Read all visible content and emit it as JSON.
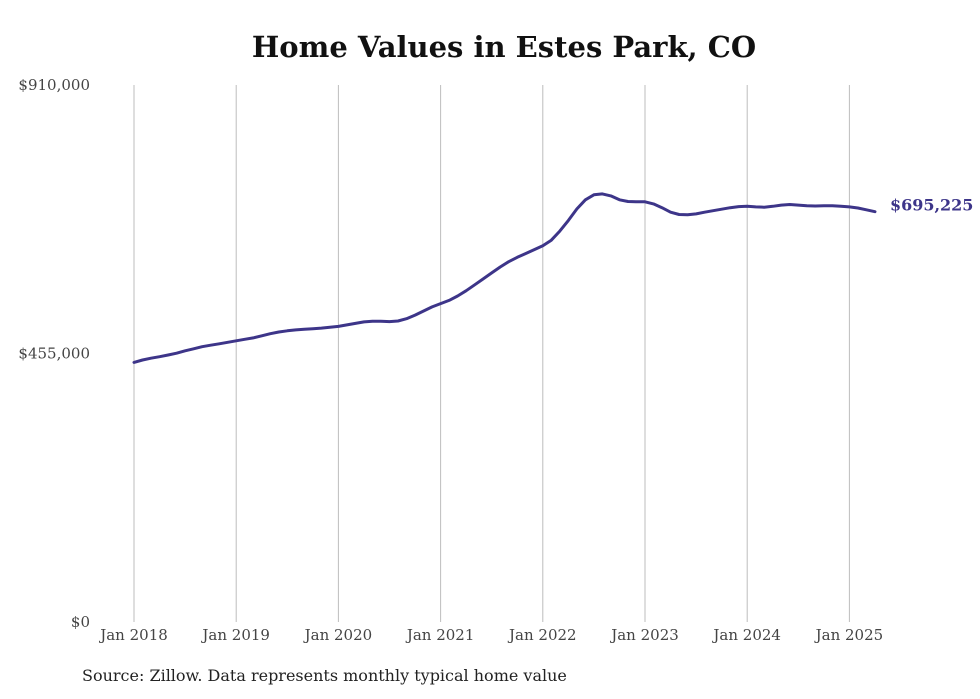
{
  "chart_data": {
    "type": "line",
    "title": "Home Values in Estes Park, CO",
    "source": "Source: Zillow. Data represents monthly typical home value",
    "xlabel": "",
    "ylabel": "",
    "x_ticks": [
      "Jan 2018",
      "Jan 2019",
      "Jan 2020",
      "Jan 2021",
      "Jan 2022",
      "Jan 2023",
      "Jan 2024",
      "Jan 2025"
    ],
    "y_ticks": [
      {
        "value": 910000,
        "label": "$910,000"
      },
      {
        "value": 455000,
        "label": "$455,000"
      },
      {
        "value": 0,
        "label": "$0"
      }
    ],
    "ylim": [
      0,
      910000
    ],
    "xlim": [
      "2018-01",
      "2025-04"
    ],
    "grid": "vertical",
    "line_color": "#3d3589",
    "end_label": "$695,225",
    "series": [
      {
        "name": "",
        "points": [
          [
            "2018-01",
            440000
          ],
          [
            "2018-02",
            444000
          ],
          [
            "2018-03",
            447000
          ],
          [
            "2018-04",
            449500
          ],
          [
            "2018-05",
            452500
          ],
          [
            "2018-06",
            455500
          ],
          [
            "2018-07",
            459500
          ],
          [
            "2018-08",
            463000
          ],
          [
            "2018-09",
            466500
          ],
          [
            "2018-10",
            469000
          ],
          [
            "2018-11",
            471500
          ],
          [
            "2018-12",
            474000
          ],
          [
            "2019-01",
            476500
          ],
          [
            "2019-02",
            479000
          ],
          [
            "2019-03",
            481500
          ],
          [
            "2019-04",
            485000
          ],
          [
            "2019-05",
            488500
          ],
          [
            "2019-06",
            491500
          ],
          [
            "2019-07",
            493500
          ],
          [
            "2019-08",
            495000
          ],
          [
            "2019-09",
            496000
          ],
          [
            "2019-10",
            497000
          ],
          [
            "2019-11",
            498000
          ],
          [
            "2019-12",
            499500
          ],
          [
            "2020-01",
            501000
          ],
          [
            "2020-02",
            503500
          ],
          [
            "2020-03",
            506000
          ],
          [
            "2020-04",
            508500
          ],
          [
            "2020-05",
            509500
          ],
          [
            "2020-06",
            509500
          ],
          [
            "2020-07",
            509000
          ],
          [
            "2020-08",
            510000
          ],
          [
            "2020-09",
            514000
          ],
          [
            "2020-10",
            520000
          ],
          [
            "2020-11",
            527000
          ],
          [
            "2020-12",
            534000
          ],
          [
            "2021-01",
            539500
          ],
          [
            "2021-02",
            545000
          ],
          [
            "2021-03",
            552500
          ],
          [
            "2021-04",
            561500
          ],
          [
            "2021-05",
            571500
          ],
          [
            "2021-06",
            581500
          ],
          [
            "2021-07",
            591500
          ],
          [
            "2021-08",
            601500
          ],
          [
            "2021-09",
            610500
          ],
          [
            "2021-10",
            618000
          ],
          [
            "2021-11",
            624500
          ],
          [
            "2021-12",
            631000
          ],
          [
            "2022-01",
            637500
          ],
          [
            "2022-02",
            647000
          ],
          [
            "2022-03",
            662500
          ],
          [
            "2022-04",
            680500
          ],
          [
            "2022-05",
            700000
          ],
          [
            "2022-06",
            715500
          ],
          [
            "2022-07",
            724000
          ],
          [
            "2022-08",
            725500
          ],
          [
            "2022-09",
            722000
          ],
          [
            "2022-10",
            715500
          ],
          [
            "2022-11",
            712500
          ],
          [
            "2022-12",
            712000
          ],
          [
            "2023-01",
            712000
          ],
          [
            "2023-02",
            708500
          ],
          [
            "2023-03",
            702000
          ],
          [
            "2023-04",
            694500
          ],
          [
            "2023-05",
            690500
          ],
          [
            "2023-06",
            690000
          ],
          [
            "2023-07",
            691500
          ],
          [
            "2023-08",
            694500
          ],
          [
            "2023-09",
            697000
          ],
          [
            "2023-10",
            699500
          ],
          [
            "2023-11",
            702000
          ],
          [
            "2023-12",
            704000
          ],
          [
            "2024-01",
            704500
          ],
          [
            "2024-02",
            703500
          ],
          [
            "2024-03",
            703000
          ],
          [
            "2024-04",
            704500
          ],
          [
            "2024-05",
            706500
          ],
          [
            "2024-06",
            707500
          ],
          [
            "2024-07",
            706500
          ],
          [
            "2024-08",
            705500
          ],
          [
            "2024-09",
            705000
          ],
          [
            "2024-10",
            705500
          ],
          [
            "2024-11",
            705500
          ],
          [
            "2024-12",
            704500
          ],
          [
            "2025-01",
            703500
          ],
          [
            "2025-02",
            701500
          ],
          [
            "2025-03",
            698500
          ],
          [
            "2025-04",
            695225
          ]
        ]
      }
    ]
  }
}
